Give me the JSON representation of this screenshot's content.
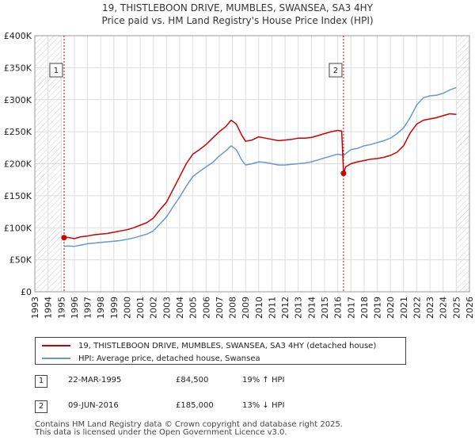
{
  "chart_data": {
    "type": "line",
    "title": "19, THISTLEBOON DRIVE, MUMBLES, SWANSEA, SA3 4HY",
    "subtitle": "Price paid vs. HM Land Registry's House Price Index (HPI)",
    "xlabel": "",
    "ylabel": "",
    "xlim": [
      1993,
      2026
    ],
    "ylim": [
      0,
      400000
    ],
    "x_ticks": [
      1993,
      1994,
      1995,
      1996,
      1997,
      1998,
      1999,
      2000,
      2001,
      2002,
      2003,
      2004,
      2005,
      2006,
      2007,
      2008,
      2009,
      2010,
      2011,
      2012,
      2013,
      2014,
      2015,
      2016,
      2017,
      2018,
      2019,
      2020,
      2021,
      2022,
      2023,
      2024,
      2025,
      2026
    ],
    "y_ticks": [
      0,
      50000,
      100000,
      150000,
      200000,
      250000,
      300000,
      350000,
      400000
    ],
    "y_tick_labels": [
      "£0",
      "£50K",
      "£100K",
      "£150K",
      "£200K",
      "£250K",
      "£300K",
      "£350K",
      "£400K"
    ],
    "grid": true,
    "hatched_ranges": [
      [
        1993,
        1995.0
      ],
      [
        2025.0,
        2026
      ]
    ],
    "series": [
      {
        "name": "19, THISTLEBOON DRIVE, MUMBLES, SWANSEA, SA3 4HY (detached house)",
        "color": "#cc0000",
        "x": [
          1995.22,
          1995.5,
          1996.0,
          1996.5,
          1997.0,
          1997.5,
          1998.0,
          1998.5,
          1999.0,
          1999.5,
          2000.0,
          2000.5,
          2001.0,
          2001.5,
          2002.0,
          2002.5,
          2003.0,
          2003.5,
          2004.0,
          2004.5,
          2005.0,
          2005.5,
          2006.0,
          2006.5,
          2007.0,
          2007.5,
          2007.9,
          2008.3,
          2008.7,
          2009.0,
          2009.5,
          2010.0,
          2010.5,
          2011.0,
          2011.5,
          2012.0,
          2012.5,
          2013.0,
          2013.5,
          2014.0,
          2014.5,
          2015.0,
          2015.5,
          2016.0,
          2016.3,
          2016.44,
          2016.6,
          2017.0,
          2017.5,
          2018.0,
          2018.5,
          2019.0,
          2019.5,
          2020.0,
          2020.5,
          2021.0,
          2021.5,
          2022.0,
          2022.5,
          2023.0,
          2023.5,
          2024.0,
          2024.5,
          2025.0
        ],
        "values": [
          84500,
          85000,
          83000,
          86000,
          87000,
          89000,
          90000,
          91000,
          93000,
          95000,
          97000,
          100000,
          104000,
          108000,
          115000,
          128000,
          140000,
          160000,
          180000,
          200000,
          215000,
          222000,
          230000,
          240000,
          250000,
          258000,
          268000,
          262000,
          245000,
          235000,
          237000,
          242000,
          240000,
          238000,
          236000,
          237000,
          238000,
          240000,
          240000,
          241000,
          244000,
          247000,
          250000,
          252000,
          251000,
          185000,
          195000,
          200000,
          203000,
          205000,
          207000,
          208000,
          210000,
          213000,
          218000,
          228000,
          248000,
          262000,
          268000,
          270000,
          272000,
          275000,
          278000,
          277000
        ]
      },
      {
        "name": "HPI: Average price, detached house, Swansea",
        "color": "#6699cc",
        "x": [
          1995.22,
          1995.5,
          1996.0,
          1996.5,
          1997.0,
          1997.5,
          1998.0,
          1998.5,
          1999.0,
          1999.5,
          2000.0,
          2000.5,
          2001.0,
          2001.5,
          2002.0,
          2002.5,
          2003.0,
          2003.5,
          2004.0,
          2004.5,
          2005.0,
          2005.5,
          2006.0,
          2006.5,
          2007.0,
          2007.5,
          2007.9,
          2008.3,
          2008.7,
          2009.0,
          2009.5,
          2010.0,
          2010.5,
          2011.0,
          2011.5,
          2012.0,
          2012.5,
          2013.0,
          2013.5,
          2014.0,
          2014.5,
          2015.0,
          2015.5,
          2016.0,
          2016.44,
          2016.8,
          2017.0,
          2017.5,
          2018.0,
          2018.5,
          2019.0,
          2019.5,
          2020.0,
          2020.5,
          2021.0,
          2021.5,
          2022.0,
          2022.5,
          2023.0,
          2023.5,
          2024.0,
          2024.5,
          2025.0
        ],
        "values": [
          71000,
          71500,
          71000,
          73000,
          75000,
          76000,
          77000,
          78000,
          79000,
          80000,
          82000,
          84000,
          87000,
          90000,
          95000,
          106000,
          117000,
          133000,
          148000,
          165000,
          180000,
          188000,
          195000,
          202000,
          212000,
          220000,
          228000,
          222000,
          206000,
          198000,
          200000,
          203000,
          202000,
          200000,
          198000,
          198000,
          199000,
          200000,
          201000,
          203000,
          206000,
          209000,
          212000,
          215000,
          213000,
          219000,
          222000,
          224000,
          228000,
          230000,
          233000,
          236000,
          240000,
          247000,
          256000,
          272000,
          292000,
          303000,
          306000,
          307000,
          310000,
          315000,
          319000
        ]
      }
    ],
    "sales": [
      {
        "label": "1",
        "x": 1995.22,
        "value": 84500
      },
      {
        "label": "2",
        "x": 2016.44,
        "value": 185000
      }
    ]
  },
  "legend": {
    "items": [
      {
        "label": "19, THISTLEBOON DRIVE, MUMBLES, SWANSEA, SA3 4HY (detached house)",
        "color": "#cc0000"
      },
      {
        "label": "HPI: Average price, detached house, Swansea",
        "color": "#6699cc"
      }
    ]
  },
  "sales_table": [
    {
      "num": "1",
      "date": "22-MAR-1995",
      "price": "£84,500",
      "hpi": "19% ↑ HPI"
    },
    {
      "num": "2",
      "date": "09-JUN-2016",
      "price": "£185,000",
      "hpi": "13% ↓ HPI"
    }
  ],
  "footer": {
    "line1": "Contains HM Land Registry data © Crown copyright and database right 2025.",
    "line2": "This data is licensed under the Open Government Licence v3.0."
  }
}
